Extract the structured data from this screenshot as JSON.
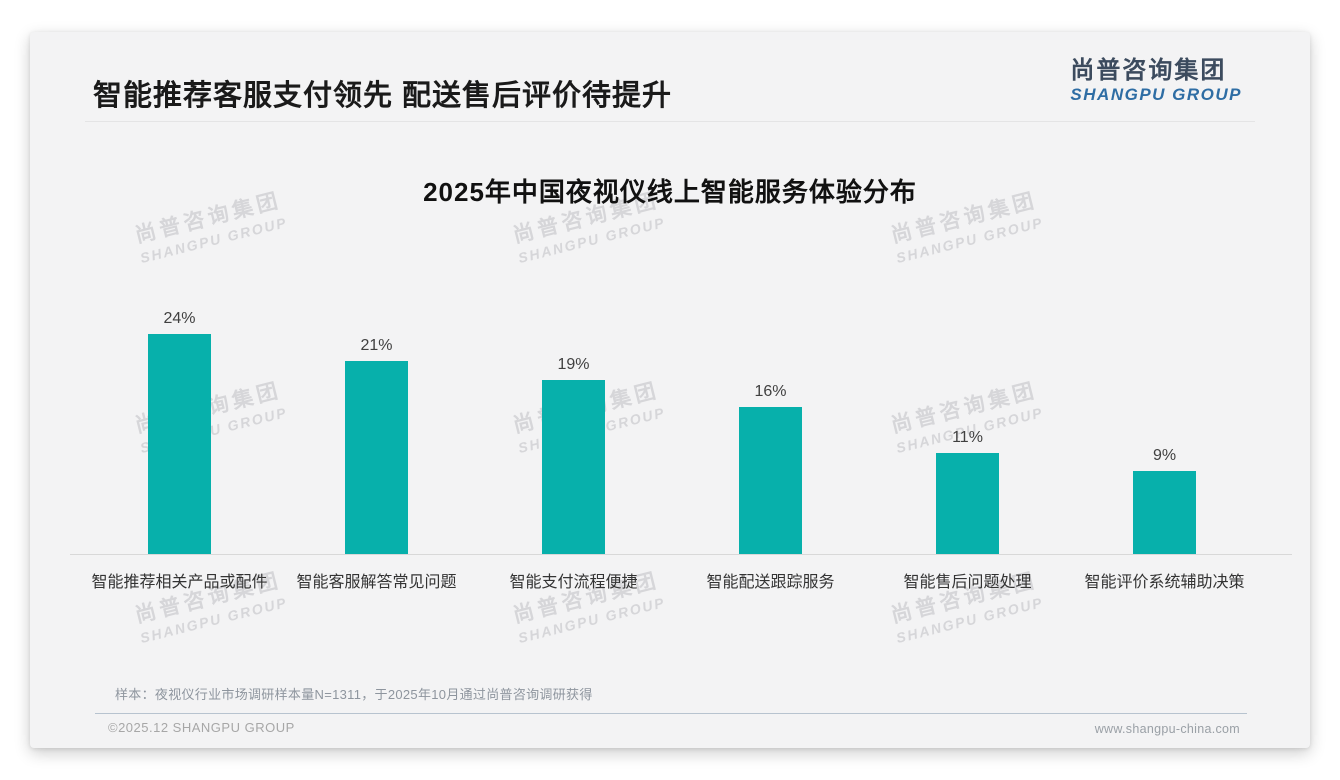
{
  "header": {
    "title": "智能推荐客服支付领先 配送售后评价待提升",
    "logo_cn": "尚普咨询集团",
    "logo_en": "SHANGPU GROUP"
  },
  "chart_data": {
    "type": "bar",
    "title": "2025年中国夜视仪线上智能服务体验分布",
    "categories": [
      "智能推荐相关产品或配件",
      "智能客服解答常见问题",
      "智能支付流程便捷",
      "智能配送跟踪服务",
      "智能售后问题处理",
      "智能评价系统辅助决策"
    ],
    "values": [
      24,
      21,
      19,
      16,
      11,
      9
    ],
    "value_labels": [
      "24%",
      "21%",
      "19%",
      "16%",
      "11%",
      "9%"
    ],
    "unit": "%",
    "bar_color": "#07b0ab",
    "ylim": [
      0,
      25
    ],
    "grid": false,
    "legend": "none",
    "xlabel": "",
    "ylabel": ""
  },
  "watermark": {
    "line1": "尚普咨询集团",
    "line2": "SHANGPU GROUP"
  },
  "footer": {
    "note": "样本：夜视仪行业市场调研样本量N=1311，于2025年10月通过尚普咨询调研获得",
    "copyright": "©2025.12 SHANGPU GROUP",
    "website": "www.shangpu-china.com"
  }
}
